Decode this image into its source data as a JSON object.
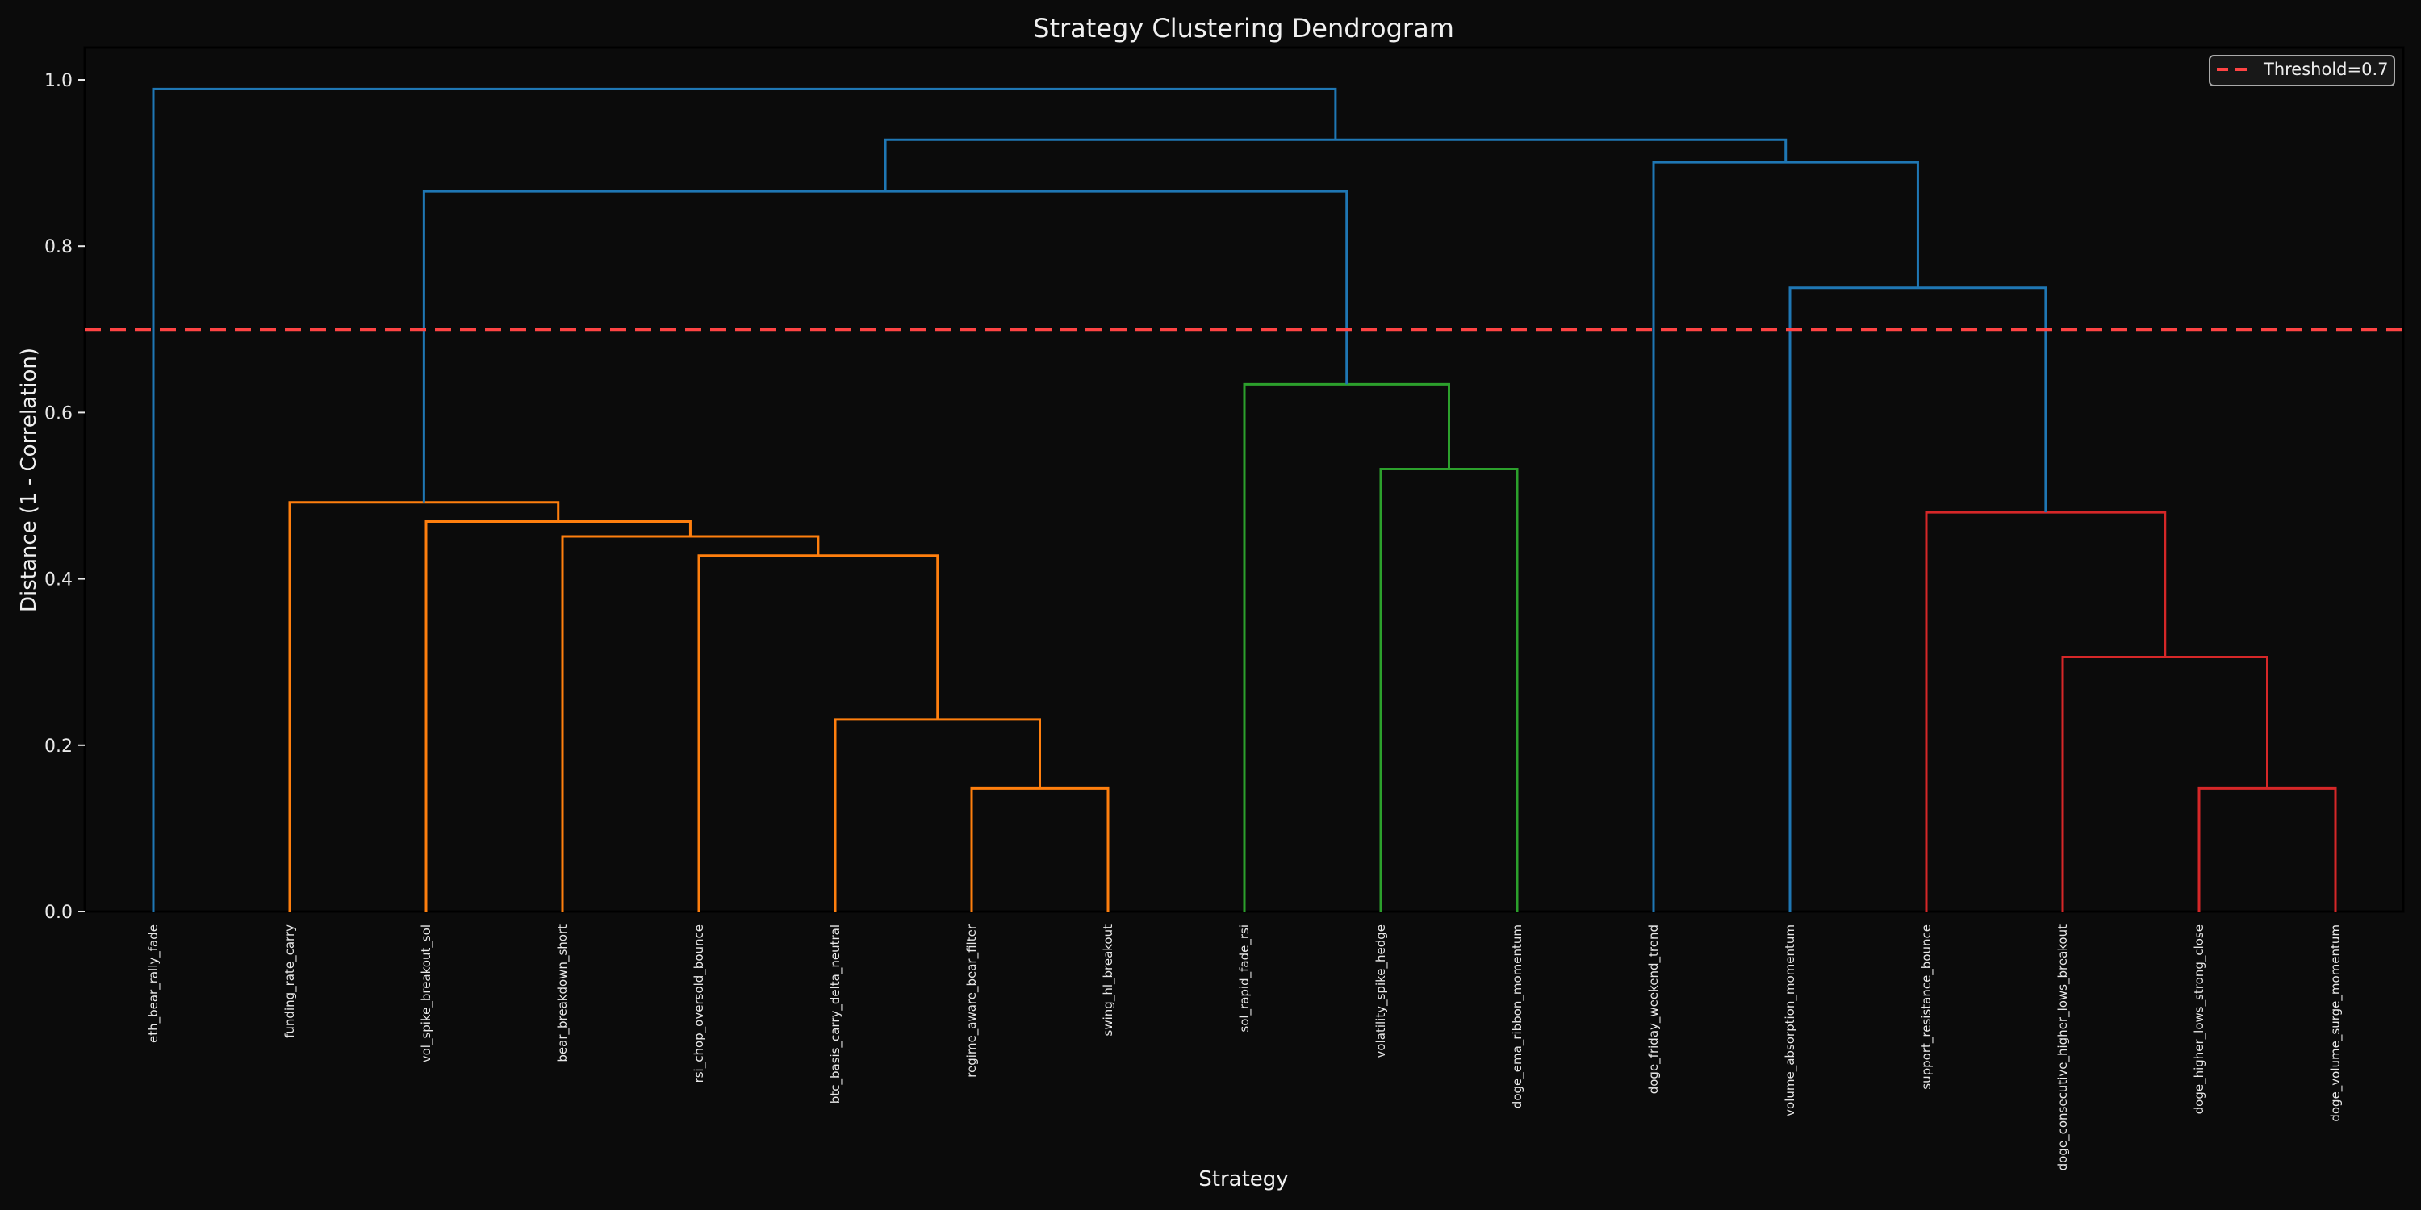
{
  "chart_data": {
    "type": "dendrogram",
    "title": "Strategy Clustering Dendrogram",
    "xlabel": "Strategy",
    "ylabel": "Distance (1 - Correlation)",
    "ylim": [
      0,
      1.04
    ],
    "yticks": [
      "0.0",
      "0.2",
      "0.4",
      "0.6",
      "0.8",
      "1.0"
    ],
    "ytick_values": [
      0,
      0.2,
      0.4,
      0.6,
      0.8,
      1.0
    ],
    "grid": false,
    "legend": {
      "position": "upper right",
      "entries": [
        {
          "label": "Threshold=0.7",
          "style": "dashed",
          "color": "#ff4444"
        }
      ]
    },
    "threshold": 0.7,
    "leaves": [
      "eth_bear_rally_fade",
      "funding_rate_carry",
      "vol_spike_breakout_sol",
      "bear_breakdown_short",
      "rsi_chop_oversold_bounce",
      "btc_basis_carry_delta_neutral",
      "regime_aware_bear_filter",
      "swing_hl_breakout",
      "sol_rapid_fade_rsi",
      "volatility_spike_hedge",
      "doge_ema_ribbon_momentum",
      "doge_friday_weekend_trend",
      "volume_absorption_momentum",
      "support_resistance_bounce",
      "doge_consecutive_higher_lows_breakout",
      "doge_higher_lows_strong_close",
      "doge_volume_surge_momentum"
    ],
    "colors": {
      "above_threshold": "#1f77b4",
      "cluster_1": "#ff7f0e",
      "cluster_2": "#2ca02c",
      "cluster_3": "#d62728"
    },
    "merges": [
      {
        "id": "m1",
        "left": "L6",
        "right": "L7",
        "height": 0.148,
        "color": "#ff7f0e"
      },
      {
        "id": "m2",
        "left": "L5",
        "right": "m1",
        "height": 0.231,
        "color": "#ff7f0e"
      },
      {
        "id": "m3",
        "left": "L4",
        "right": "m2",
        "height": 0.428,
        "color": "#ff7f0e"
      },
      {
        "id": "m4",
        "left": "L3",
        "right": "m3",
        "height": 0.451,
        "color": "#ff7f0e"
      },
      {
        "id": "m5",
        "left": "L2",
        "right": "m4",
        "height": 0.469,
        "color": "#ff7f0e"
      },
      {
        "id": "m6",
        "left": "L1",
        "right": "m5",
        "height": 0.492,
        "color": "#ff7f0e"
      },
      {
        "id": "m7",
        "left": "L9",
        "right": "L10",
        "height": 0.532,
        "color": "#2ca02c"
      },
      {
        "id": "m8",
        "left": "L8",
        "right": "m7",
        "height": 0.634,
        "color": "#2ca02c"
      },
      {
        "id": "m9",
        "left": "m6",
        "right": "m8",
        "height": 0.866,
        "color": "#1f77b4"
      },
      {
        "id": "m10",
        "left": "L15",
        "right": "L16",
        "height": 0.148,
        "color": "#d62728"
      },
      {
        "id": "m11",
        "left": "L14",
        "right": "m10",
        "height": 0.306,
        "color": "#d62728"
      },
      {
        "id": "m12",
        "left": "L13",
        "right": "m11",
        "height": 0.48,
        "color": "#d62728"
      },
      {
        "id": "m13",
        "left": "L12",
        "right": "m12",
        "height": 0.75,
        "color": "#1f77b4"
      },
      {
        "id": "m14",
        "left": "L11",
        "right": "m13",
        "height": 0.901,
        "color": "#1f77b4"
      },
      {
        "id": "m15",
        "left": "m9",
        "right": "m14",
        "height": 0.928,
        "color": "#1f77b4"
      },
      {
        "id": "m16",
        "left": "L0",
        "right": "m15",
        "height": 0.989,
        "color": "#1f77b4"
      }
    ]
  },
  "style": {
    "background": "#0b0b0b",
    "threshold_color": "#ff4444",
    "axis_color": "#000000"
  }
}
